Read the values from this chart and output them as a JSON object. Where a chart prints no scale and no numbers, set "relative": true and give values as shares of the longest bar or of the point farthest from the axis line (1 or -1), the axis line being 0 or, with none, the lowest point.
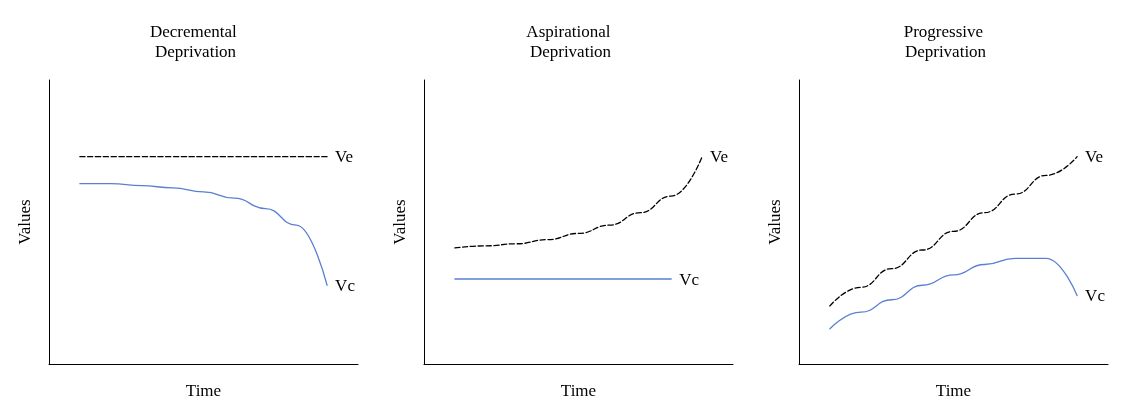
{
  "chart_data": [
    {
      "type": "line",
      "title": "Decremental Deprivation",
      "xlabel": "Time",
      "ylabel": "Values",
      "relative": true,
      "marker": "none",
      "categories": [
        null,
        null,
        null,
        null,
        null,
        null,
        null,
        null,
        null,
        null,
        null
      ],
      "series": [
        {
          "name": "Ve",
          "color": "#000000",
          "line_style": "dashed",
          "values": [
            null,
            1,
            1,
            1,
            1,
            1,
            1,
            1,
            1,
            1,
            null
          ]
        },
        {
          "name": "Vc",
          "color": "#5b7fd1",
          "line_style": "solid",
          "values": [
            null,
            0.87,
            0.87,
            0.86,
            0.85,
            0.83,
            0.8,
            0.75,
            0.67,
            0.38,
            null
          ]
        }
      ]
    },
    {
      "type": "line",
      "title": "Aspirational Deprivation",
      "xlabel": "Time",
      "ylabel": "Values",
      "relative": true,
      "marker": "none",
      "categories": [
        null,
        null,
        null,
        null,
        null,
        null,
        null,
        null,
        null,
        null,
        null
      ],
      "series": [
        {
          "name": "Ve",
          "color": "#000000",
          "line_style": "dashed",
          "values": [
            null,
            0.56,
            0.57,
            0.58,
            0.6,
            0.63,
            0.67,
            0.73,
            0.81,
            1,
            null
          ]
        },
        {
          "name": "Vc",
          "color": "#5b7fd1",
          "line_style": "solid",
          "values": [
            null,
            0.41,
            0.41,
            0.41,
            0.41,
            0.41,
            0.41,
            0.41,
            0.41,
            null,
            null
          ]
        }
      ]
    },
    {
      "type": "line",
      "title": "Progressive Deprivation",
      "xlabel": "Time",
      "ylabel": "Values",
      "relative": true,
      "marker": "none",
      "categories": [
        null,
        null,
        null,
        null,
        null,
        null,
        null,
        null,
        null,
        null,
        null
      ],
      "series": [
        {
          "name": "Ve",
          "color": "#000000",
          "line_style": "dashed",
          "values": [
            null,
            0.28,
            0.37,
            0.46,
            0.55,
            0.64,
            0.73,
            0.82,
            0.91,
            1,
            null
          ]
        },
        {
          "name": "Vc",
          "color": "#5b7fd1",
          "line_style": "solid",
          "values": [
            null,
            0.17,
            0.25,
            0.31,
            0.38,
            0.43,
            0.48,
            0.51,
            0.51,
            0.33,
            null
          ]
        }
      ]
    }
  ]
}
